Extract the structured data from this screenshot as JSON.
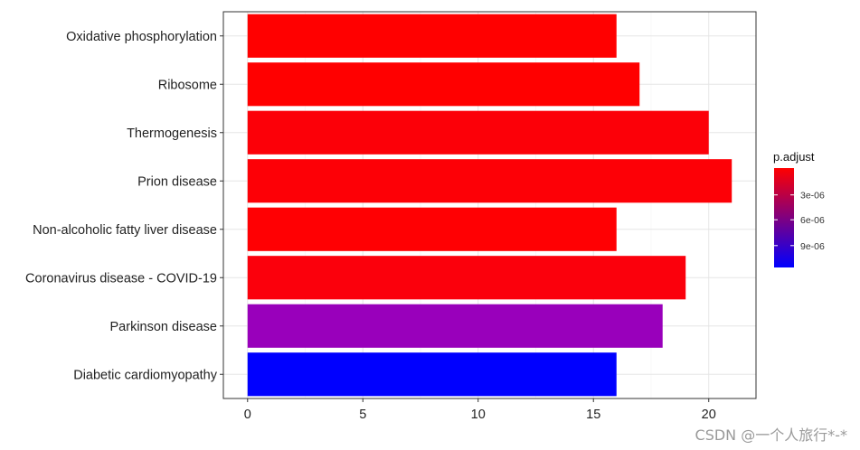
{
  "chart_data": {
    "type": "bar",
    "orientation": "horizontal",
    "categories": [
      "Oxidative phosphorylation",
      "Ribosome",
      "Thermogenesis",
      "Prion disease",
      "Non-alcoholic fatty liver disease",
      "Coronavirus disease - COVID-19",
      "Parkinson disease",
      "Diabetic cardiomyopathy"
    ],
    "values": [
      16,
      17,
      20,
      21,
      16,
      19,
      18,
      16
    ],
    "bar_colors": [
      "#ff0000",
      "#ff0000",
      "#fc0008",
      "#fd0006",
      "#ff0003",
      "#fb000c",
      "#9900bb",
      "#0000ff"
    ],
    "xlim": [
      -1.05,
      22.05
    ],
    "xticks": [
      0,
      5,
      10,
      15,
      20
    ],
    "xlabel": "",
    "ylabel": "",
    "grid": true,
    "legend": {
      "title": "p.adjust",
      "position": "right",
      "gradient_colors": [
        "#ff0000",
        "#0000ff"
      ],
      "ticks": [
        "3e-06",
        "6e-06",
        "9e-06"
      ]
    }
  },
  "watermark": "CSDN @一个人旅行*-*"
}
